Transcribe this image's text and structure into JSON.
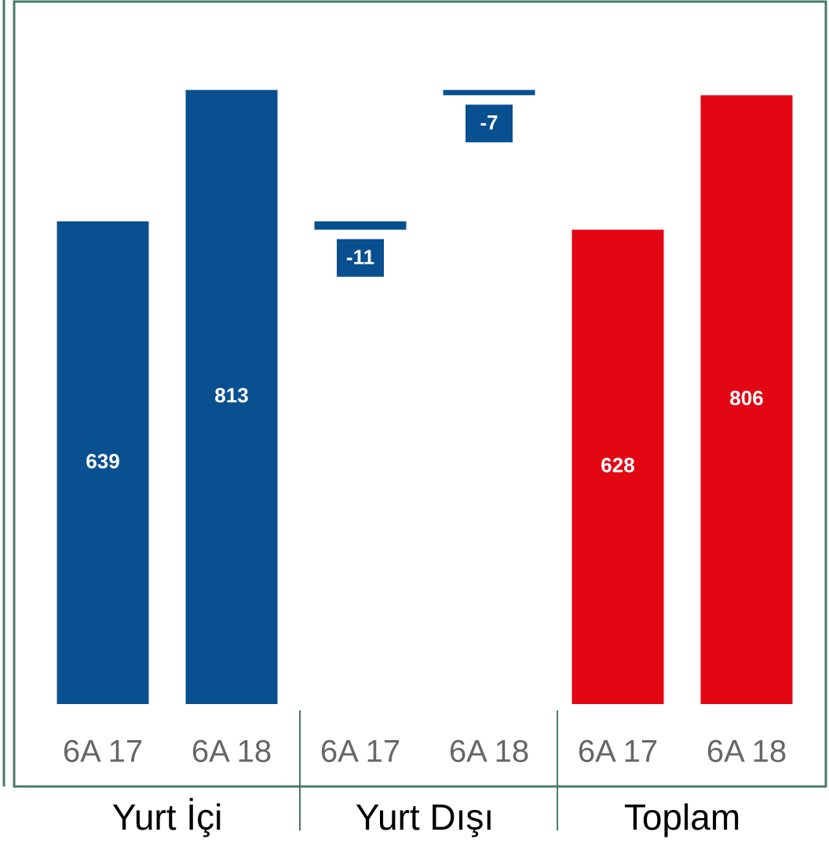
{
  "chart_data": {
    "type": "waterfall",
    "categories": [
      "6A 17",
      "6A 18"
    ],
    "series": [
      {
        "name": "Yurt İçi",
        "color": "#08508f",
        "values": [
          639,
          813
        ]
      },
      {
        "name": "Yurt Dışı",
        "color": "#08508f",
        "values": [
          -11,
          -7
        ]
      },
      {
        "name": "Toplam",
        "color": "#e30613",
        "values": [
          628,
          806
        ]
      }
    ],
    "ylim": [
      0,
      930
    ]
  }
}
